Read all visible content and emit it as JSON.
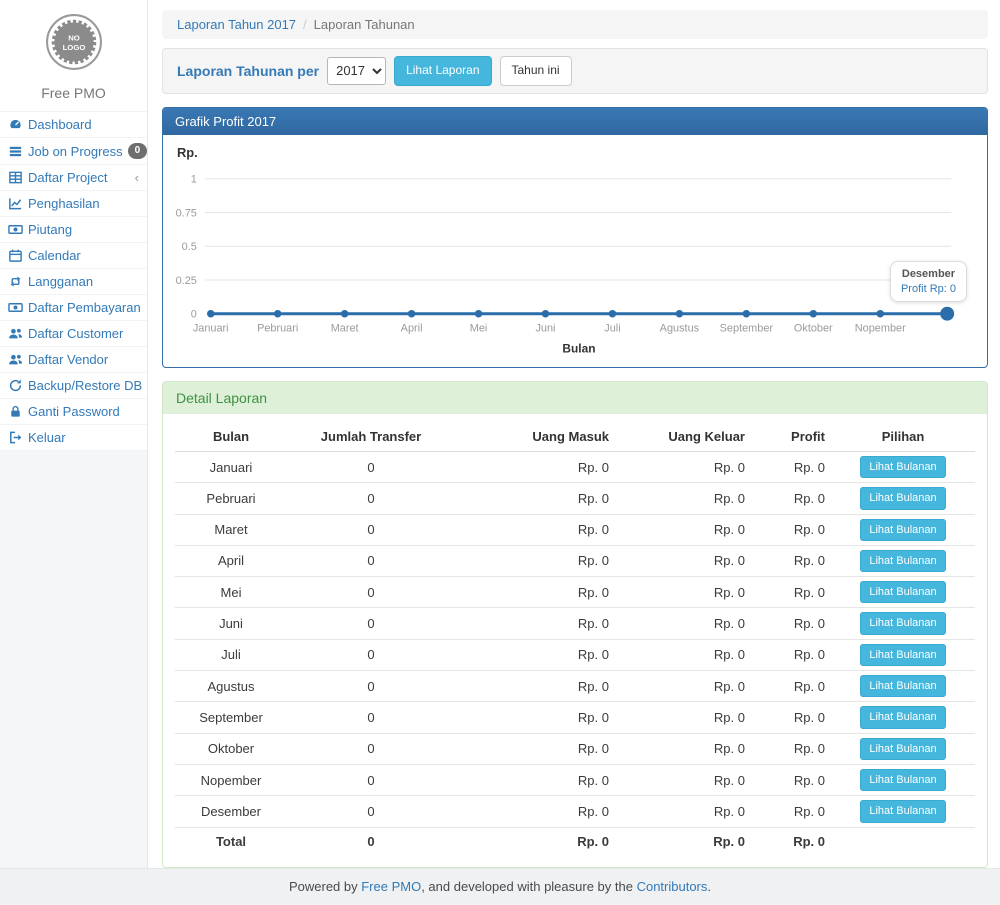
{
  "sidebar": {
    "logo_lines": [
      "NO",
      "LOGO"
    ],
    "brand": "Free PMO",
    "items": [
      {
        "label": "Dashboard",
        "icon": "dashboard-icon"
      },
      {
        "label": "Job on Progress",
        "icon": "tasks-icon",
        "badge": "0"
      },
      {
        "label": "Daftar Project",
        "icon": "table-icon",
        "chevron": "‹"
      },
      {
        "label": "Penghasilan",
        "icon": "chart-line-icon"
      },
      {
        "label": "Piutang",
        "icon": "money-icon"
      },
      {
        "label": "Calendar",
        "icon": "calendar-icon"
      },
      {
        "label": "Langganan",
        "icon": "retweet-icon"
      },
      {
        "label": "Daftar Pembayaran",
        "icon": "money-icon"
      },
      {
        "label": "Daftar Customer",
        "icon": "users-icon"
      },
      {
        "label": "Daftar Vendor",
        "icon": "users-icon"
      },
      {
        "label": "Backup/Restore DB",
        "icon": "refresh-icon"
      },
      {
        "label": "Ganti Password",
        "icon": "lock-icon"
      },
      {
        "label": "Keluar",
        "icon": "sign-out-icon"
      }
    ]
  },
  "breadcrumb": {
    "link": "Laporan Tahun 2017",
    "separator": "/",
    "current": "Laporan Tahunan"
  },
  "filter": {
    "label": "Laporan Tahunan per",
    "year": "2017",
    "year_options": [
      "2017"
    ],
    "submit_label": "Lihat Laporan",
    "this_year_label": "Tahun ini"
  },
  "chart_panel": {
    "title": "Grafik Profit 2017"
  },
  "chart_data": {
    "type": "line",
    "title": "Grafik Profit 2017",
    "x": [
      "Januari",
      "Pebruari",
      "Maret",
      "April",
      "Mei",
      "Juni",
      "Juli",
      "Agustus",
      "September",
      "Oktober",
      "Nopember",
      "Desember"
    ],
    "series": [
      {
        "name": "Profit",
        "values": [
          0,
          0,
          0,
          0,
          0,
          0,
          0,
          0,
          0,
          0,
          0,
          0
        ]
      }
    ],
    "xlabel": "Bulan",
    "ylabel": "Rp.",
    "ylim": [
      0,
      1
    ],
    "yticks": [
      1,
      0.75,
      0.5,
      0.25,
      0
    ],
    "grid": true,
    "x_labels_shown": 11,
    "highlight_index": 11,
    "legend_position": "none",
    "tooltip": {
      "title": "Desember",
      "value": "Profit Rp: 0"
    },
    "line_color": "#2a6da9"
  },
  "detail_panel": {
    "title": "Detail Laporan",
    "table": {
      "columns": [
        "Bulan",
        "Jumlah Transfer",
        "Uang Masuk",
        "Uang Keluar",
        "Profit",
        "Pilihan"
      ],
      "action_label": "Lihat Bulanan",
      "rows": [
        [
          "Januari",
          "0",
          "Rp. 0",
          "Rp. 0",
          "Rp. 0"
        ],
        [
          "Pebruari",
          "0",
          "Rp. 0",
          "Rp. 0",
          "Rp. 0"
        ],
        [
          "Maret",
          "0",
          "Rp. 0",
          "Rp. 0",
          "Rp. 0"
        ],
        [
          "April",
          "0",
          "Rp. 0",
          "Rp. 0",
          "Rp. 0"
        ],
        [
          "Mei",
          "0",
          "Rp. 0",
          "Rp. 0",
          "Rp. 0"
        ],
        [
          "Juni",
          "0",
          "Rp. 0",
          "Rp. 0",
          "Rp. 0"
        ],
        [
          "Juli",
          "0",
          "Rp. 0",
          "Rp. 0",
          "Rp. 0"
        ],
        [
          "Agustus",
          "0",
          "Rp. 0",
          "Rp. 0",
          "Rp. 0"
        ],
        [
          "September",
          "0",
          "Rp. 0",
          "Rp. 0",
          "Rp. 0"
        ],
        [
          "Oktober",
          "0",
          "Rp. 0",
          "Rp. 0",
          "Rp. 0"
        ],
        [
          "Nopember",
          "0",
          "Rp. 0",
          "Rp. 0",
          "Rp. 0"
        ],
        [
          "Desember",
          "0",
          "Rp. 0",
          "Rp. 0",
          "Rp. 0"
        ]
      ],
      "total_row": [
        "Total",
        "0",
        "Rp. 0",
        "Rp. 0",
        "Rp. 0"
      ]
    }
  },
  "footer": {
    "prefix": "Powered by ",
    "link1": "Free PMO",
    "middle": ", and developed with pleasure by the ",
    "link2": "Contributors",
    "suffix": "."
  },
  "colors": {
    "accent_link": "#337ab7",
    "panel_primary_header": "#3371a8",
    "panel_success_bg": "#dff0d8",
    "panel_success_text": "#3f9144",
    "info_button": "#45b6dc",
    "badge": "#6e6e6e",
    "chart_line": "#2a6da9"
  }
}
